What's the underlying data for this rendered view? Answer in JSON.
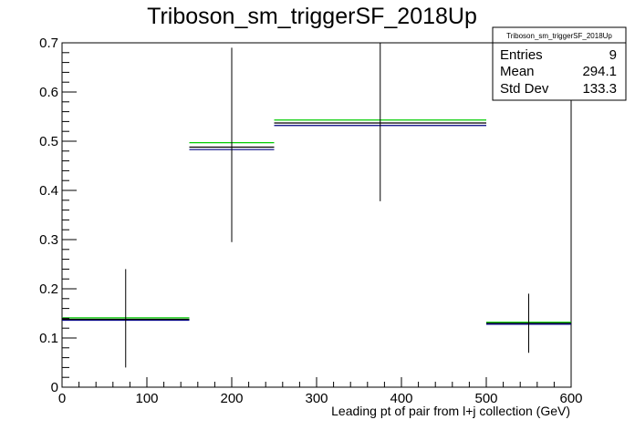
{
  "chart_data": {
    "type": "bar",
    "title": "Triboson_sm_triggerSF_2018Up",
    "xlabel": "Leading pt of pair from l+j collection (GeV)",
    "ylabel": "",
    "xlim": [
      0,
      600
    ],
    "ylim": [
      0,
      0.7
    ],
    "x_ticks": [
      "0",
      "100",
      "200",
      "300",
      "400",
      "500",
      "600"
    ],
    "y_ticks": [
      "0",
      "0.1",
      "0.2",
      "0.3",
      "0.4",
      "0.5",
      "0.6",
      "0.7"
    ],
    "bins": [
      {
        "x_low": 0,
        "x_high": 150,
        "x_center": 75,
        "value": 0.138,
        "err_low": 0.04,
        "err_high": 0.24
      },
      {
        "x_low": 150,
        "x_high": 250,
        "x_center": 200,
        "value": 0.488,
        "err_low": 0.295,
        "err_high": 0.69
      },
      {
        "x_low": 250,
        "x_high": 500,
        "x_center": 375,
        "value": 0.537,
        "err_low": 0.378,
        "err_high": 0.7
      },
      {
        "x_low": 500,
        "x_high": 600,
        "x_center": 550,
        "value": 0.13,
        "err_low": 0.07,
        "err_high": 0.19
      }
    ],
    "series": [
      {
        "color": "#00cc00",
        "values": [
          0.141,
          0.497,
          0.543,
          0.132
        ]
      },
      {
        "color": "#000000",
        "values": [
          0.138,
          0.488,
          0.537,
          0.13
        ]
      },
      {
        "color": "#000080",
        "values": [
          0.136,
          0.483,
          0.532,
          0.128
        ]
      }
    ],
    "stats_box": {
      "title": "Triboson_sm_triggerSF_2018Up",
      "entries_label": "Entries",
      "entries_value": "9",
      "mean_label": "Mean",
      "mean_value": "294.1",
      "stddev_label": "Std Dev",
      "stddev_value": "133.3"
    }
  }
}
